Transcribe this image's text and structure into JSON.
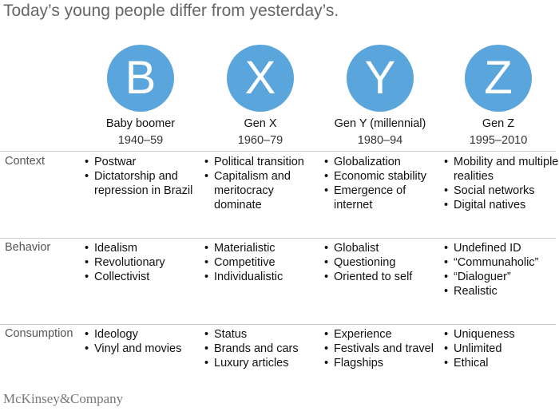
{
  "header": {
    "title": "Today’s young people differ from yesterday’s."
  },
  "generations": [
    {
      "letter": "B",
      "name": "Baby boomer",
      "years": "1940–59"
    },
    {
      "letter": "X",
      "name": "Gen X",
      "years": "1960–79"
    },
    {
      "letter": "Y",
      "name": "Gen Y (millennial)",
      "years": "1980–94"
    },
    {
      "letter": "Z",
      "name": "Gen Z",
      "years": "1995–2010"
    }
  ],
  "rows": [
    {
      "label": "Context",
      "cells": [
        [
          "Postwar",
          "Dictatorship and repression in Brazil"
        ],
        [
          "Political transition",
          "Capitalism and meritocracy dominate"
        ],
        [
          "Globalization",
          "Economic stability",
          "Emergence of internet"
        ],
        [
          "Mobility and multiple realities",
          "Social networks",
          "Digital natives"
        ]
      ]
    },
    {
      "label": "Behavior",
      "cells": [
        [
          "Idealism",
          "Revolutionary",
          "Collectivist"
        ],
        [
          "Materialistic",
          "Competitive",
          "Individualistic"
        ],
        [
          "Globalist",
          "Questioning",
          "Oriented to self"
        ],
        [
          "Undefined ID",
          "“Communaholic”",
          "“Dialoguer”",
          "Realistic"
        ]
      ]
    },
    {
      "label": "Consumption",
      "cells": [
        [
          "Ideology",
          "Vinyl and movies"
        ],
        [
          "Status",
          "Brands and cars",
          "Luxury articles"
        ],
        [
          "Experience",
          "Festivals and travel",
          "Flagships"
        ],
        [
          "Uniqueness",
          "Unlimited",
          "Ethical"
        ]
      ]
    }
  ],
  "footer": "McKinsey&Company"
}
